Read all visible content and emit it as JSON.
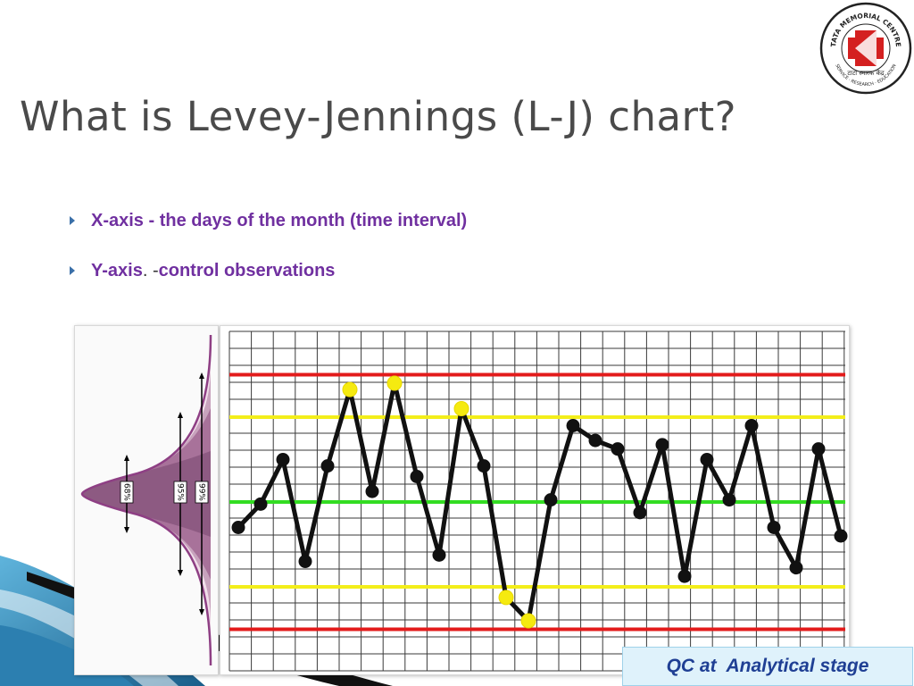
{
  "slide": {
    "title": "What is Levey-Jennings (L-J) chart?",
    "bullets": [
      {
        "parts": [
          {
            "text": "X-axis - the days of the month (time interval)",
            "style": "bold"
          }
        ]
      },
      {
        "parts": [
          {
            "text": "Y-axis",
            "style": "bold"
          },
          {
            "text": ". - ",
            "style": "plain"
          },
          {
            "text": "control observations",
            "style": "bold"
          }
        ]
      }
    ],
    "footer_label": "QC at  Analytical stage",
    "logo": {
      "ring_text": "TATA MEMORIAL CENTRE",
      "bottom_text": "SERVICE · RESEARCH · EDUCATION",
      "hindi_text": "टाटा स्मारक केंद्र"
    }
  },
  "colors": {
    "text_purple": "#7030a0",
    "control_limit_red": "#e31b1b",
    "warning_limit_yellow": "#f3ee1a",
    "mean_green": "#33dd22",
    "point_black": "#111111",
    "point_highlight": "#f5ea10",
    "bell_fill": "#a8729a",
    "footer_text": "#1f3f94"
  },
  "distribution": {
    "band_labels": [
      "68%",
      "95%",
      "99%"
    ]
  },
  "chart_data": {
    "type": "line",
    "title": "",
    "xlabel": "",
    "ylabel": "",
    "x": [
      1,
      2,
      3,
      4,
      5,
      6,
      7,
      8,
      9,
      10,
      11,
      12,
      13,
      14,
      15,
      16,
      17,
      18,
      19,
      20,
      21,
      22,
      23,
      24,
      25,
      26,
      27,
      28
    ],
    "ylim": [
      -3.6,
      4.2
    ],
    "series": [
      {
        "values": [
          -0.6,
          -0.05,
          1.0,
          -1.4,
          0.85,
          2.65,
          0.25,
          2.8,
          0.6,
          -1.25,
          2.2,
          0.85,
          -2.25,
          -2.8,
          0.05,
          1.8,
          1.45,
          1.25,
          -0.25,
          1.35,
          -1.75,
          1.0,
          0.05,
          1.8,
          -0.6,
          -1.55,
          1.25,
          -0.8
        ]
      }
    ],
    "highlighted_x": [
      6,
      8,
      11,
      13,
      14
    ],
    "reference_lines": [
      {
        "value": 3,
        "label": "+3SD",
        "color": "#e31b1b"
      },
      {
        "value": 2,
        "label": "+2SD",
        "color": "#f3ee1a"
      },
      {
        "value": 0,
        "label": "mean",
        "color": "#33dd22"
      },
      {
        "value": -2,
        "label": "-2SD",
        "color": "#f3ee1a"
      },
      {
        "value": -3,
        "label": "-3SD",
        "color": "#e31b1b"
      }
    ],
    "grid": true
  }
}
